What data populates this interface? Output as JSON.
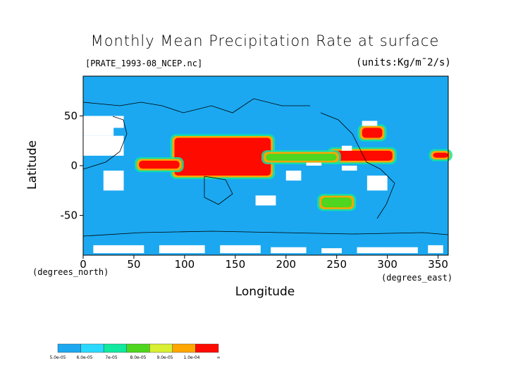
{
  "chart_data": {
    "type": "heatmap",
    "title": "Monthly Mean Precipitation Rate at surface",
    "subtitle": "[PRATE_1993-08_NCEP.nc]",
    "units": "(units:Kg/m¯2/s)",
    "xlabel": "Longitude",
    "ylabel": "Latitude",
    "x_units": "(degrees_north)",
    "x_units_east": "(degrees_east)",
    "xlim": [
      0,
      360
    ],
    "ylim": [
      -90,
      90
    ],
    "x_ticks": [
      "0",
      "50",
      "100",
      "150",
      "200",
      "250",
      "300",
      "350"
    ],
    "y_ticks": [
      "50",
      "0",
      "-50"
    ],
    "background_level": "5.0e-05",
    "colorbar": {
      "labels": [
        "5.0e-05",
        "6.0e-05",
        "7e-05",
        "8.0e-05",
        "9.0e-05",
        "1.0e-04",
        "∞"
      ],
      "colors": [
        "#1ba8f0",
        "#2bd9ff",
        "#11e8a0",
        "#4fd61f",
        "#d9ef33",
        "#ffa600",
        "#ff0a00"
      ]
    },
    "regions": [
      {
        "level": "1.0e-04+",
        "lon": [
          90,
          185
        ],
        "lat": [
          -10,
          28
        ],
        "color": "#ff0a00"
      },
      {
        "level": "1.0e-04+",
        "lon": [
          55,
          95
        ],
        "lat": [
          -3,
          5
        ],
        "color": "#ff0a00"
      },
      {
        "level": "1.0e-04+",
        "lon": [
          245,
          305
        ],
        "lat": [
          5,
          15
        ],
        "color": "#ff0a00"
      },
      {
        "level": "1.0e-04+",
        "lon": [
          275,
          295
        ],
        "lat": [
          28,
          38
        ],
        "color": "#ff0a00"
      },
      {
        "level": "1.0e-04+",
        "lon": [
          345,
          360
        ],
        "lat": [
          8,
          13
        ],
        "color": "#ff0a00"
      },
      {
        "level": "7e-05",
        "lon": [
          180,
          250
        ],
        "lat": [
          5,
          12
        ],
        "color": "#4fd61f"
      },
      {
        "level": "7e-05",
        "lon": [
          235,
          265
        ],
        "lat": [
          -42,
          -32
        ],
        "color": "#4fd61f"
      }
    ]
  }
}
